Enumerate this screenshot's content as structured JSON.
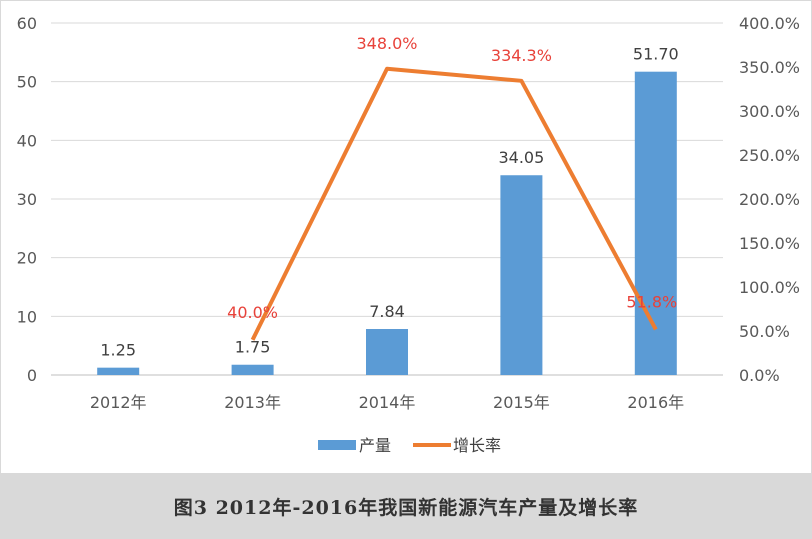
{
  "chart_data": {
    "type": "bar+line",
    "categories": [
      "2012年",
      "2013年",
      "2014年",
      "2015年",
      "2016年"
    ],
    "series": [
      {
        "name": "产量",
        "type": "bar",
        "axis": "left",
        "color": "#5b9bd5",
        "values": [
          1.25,
          1.75,
          7.84,
          34.05,
          51.7
        ],
        "labels": [
          "1.25",
          "1.75",
          "7.84",
          "34.05",
          "51.70"
        ]
      },
      {
        "name": "增长率",
        "type": "line",
        "axis": "right",
        "color": "#ed7d31",
        "values": [
          null,
          40.0,
          348.0,
          334.3,
          51.8
        ],
        "labels": [
          "",
          "40.0%",
          "348.0%",
          "334.3%",
          "51.8%"
        ],
        "label_color": "#e8423a"
      }
    ],
    "left_axis": {
      "ylim": [
        0,
        60
      ],
      "ticks": [
        "0",
        "10",
        "20",
        "30",
        "40",
        "50",
        "60"
      ]
    },
    "right_axis": {
      "ylim": [
        0,
        400
      ],
      "ticks": [
        "0.0%",
        "50.0%",
        "100.0%",
        "150.0%",
        "200.0%",
        "250.0%",
        "300.0%",
        "350.0%",
        "400.0%"
      ]
    },
    "grid": true,
    "legend_position": "bottom"
  },
  "caption": "图3  2012年-2016年我国新能源汽车产量及增长率"
}
